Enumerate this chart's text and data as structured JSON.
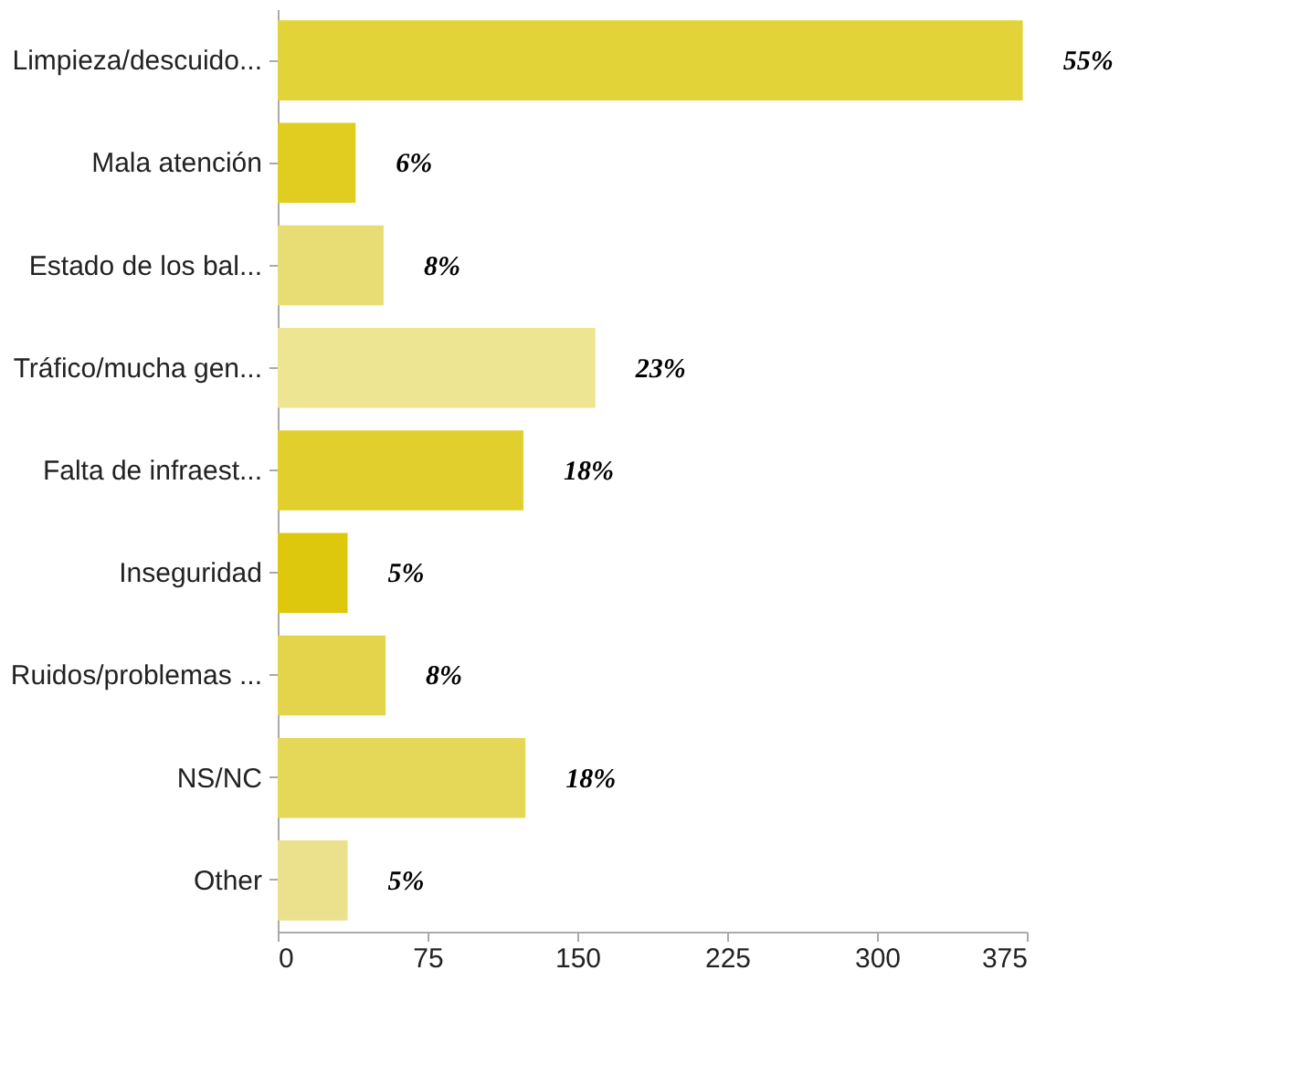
{
  "chart_data": {
    "type": "bar",
    "orientation": "horizontal",
    "categories": [
      "Limpieza/descuido...",
      "Mala atención",
      "Estado de los bal...",
      "Tráfico/mucha gen...",
      "Falta de infraest...",
      "Inseguridad",
      "Ruidos/problemas ...",
      "NS/NC",
      "Other"
    ],
    "values": [
      373,
      39,
      53,
      159,
      123,
      35,
      54,
      124,
      35
    ],
    "colors": [
      "#e2d339",
      "#e0cd1f",
      "#e8dc74",
      "#ede592",
      "#e0cf2c",
      "#dec80e",
      "#e3d44c",
      "#e5d858",
      "#ebe08c"
    ],
    "annotations": [
      {
        "text": "55%",
        "x": 373,
        "y": "Limpieza/descuido..."
      },
      {
        "text": "6%",
        "x": 39,
        "y": "Mala atención"
      },
      {
        "text": "8%",
        "x": 53,
        "y": "Estado de los bal..."
      },
      {
        "text": "23%",
        "x": 159,
        "y": "Tráfico/mucha gen..."
      },
      {
        "text": "18%",
        "x": 123,
        "y": "Falta de infraest..."
      },
      {
        "text": "5%",
        "x": 35,
        "y": "Inseguridad"
      },
      {
        "text": "8%",
        "x": 54,
        "y": "Ruidos/problemas ..."
      },
      {
        "text": "18%",
        "x": 124,
        "y": "NS/NC"
      },
      {
        "text": "5%",
        "x": 35,
        "y": "Other"
      }
    ],
    "xlim": [
      0,
      375
    ],
    "xticks": [
      0,
      75,
      150,
      225,
      300,
      375
    ],
    "grid": false
  }
}
